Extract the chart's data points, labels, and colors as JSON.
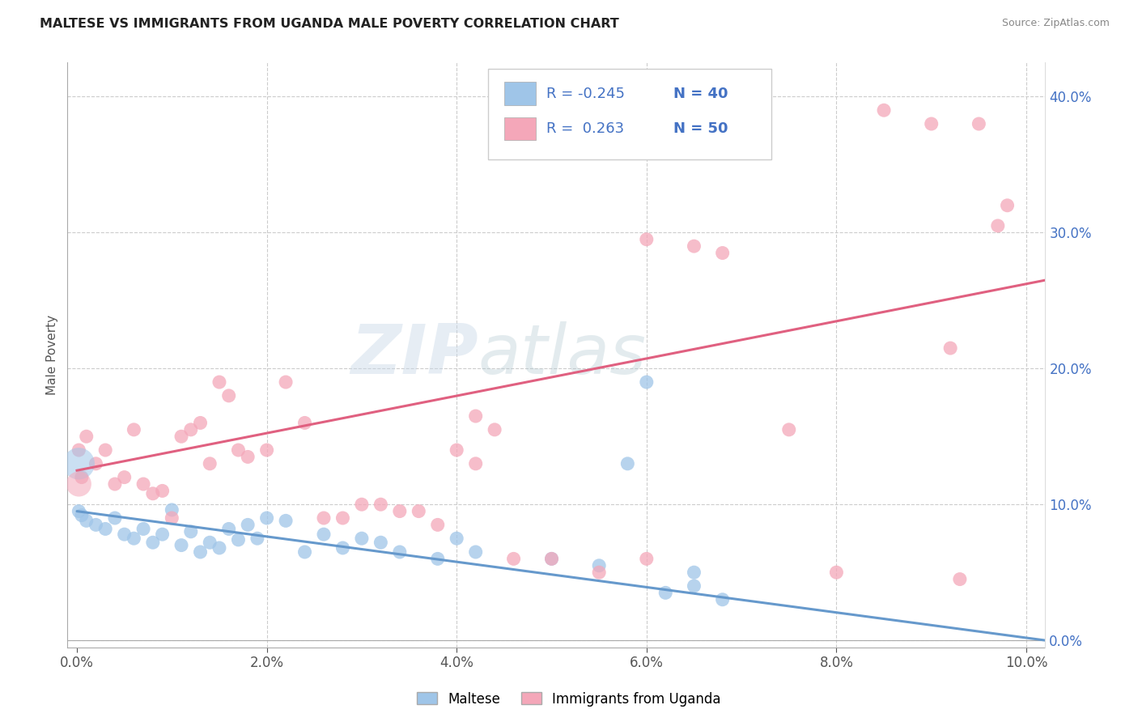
{
  "title": "MALTESE VS IMMIGRANTS FROM UGANDA MALE POVERTY CORRELATION CHART",
  "source": "Source: ZipAtlas.com",
  "ylabel": "Male Poverty",
  "xlim": [
    -0.001,
    0.102
  ],
  "ylim": [
    -0.005,
    0.425
  ],
  "xticks": [
    0.0,
    0.02,
    0.04,
    0.06,
    0.08,
    0.1
  ],
  "yticks": [
    0.0,
    0.1,
    0.2,
    0.3,
    0.4
  ],
  "ytick_labels_right": [
    "0.0%",
    "10.0%",
    "20.0%",
    "30.0%",
    "40.0%"
  ],
  "xtick_labels": [
    "0.0%",
    "2.0%",
    "4.0%",
    "6.0%",
    "8.0%",
    "10.0%"
  ],
  "legend_labels": [
    "Maltese",
    "Immigrants from Uganda"
  ],
  "blue_R": "-0.245",
  "blue_N": "40",
  "pink_R": "0.263",
  "pink_N": "50",
  "blue_color": "#9fc5e8",
  "pink_color": "#f4a7b9",
  "blue_line_color": "#6699cc",
  "pink_line_color": "#e06080",
  "watermark": "ZIPatlas",
  "blue_scatter_x": [
    0.0002,
    0.0005,
    0.001,
    0.002,
    0.003,
    0.004,
    0.005,
    0.006,
    0.007,
    0.008,
    0.009,
    0.01,
    0.011,
    0.012,
    0.013,
    0.014,
    0.015,
    0.016,
    0.017,
    0.018,
    0.019,
    0.02,
    0.022,
    0.024,
    0.026,
    0.028,
    0.03,
    0.032,
    0.034,
    0.038,
    0.04,
    0.042,
    0.05,
    0.055,
    0.058,
    0.062,
    0.065,
    0.068,
    0.06,
    0.065
  ],
  "blue_scatter_y": [
    0.095,
    0.092,
    0.088,
    0.085,
    0.082,
    0.09,
    0.078,
    0.075,
    0.082,
    0.072,
    0.078,
    0.096,
    0.07,
    0.08,
    0.065,
    0.072,
    0.068,
    0.082,
    0.074,
    0.085,
    0.075,
    0.09,
    0.088,
    0.065,
    0.078,
    0.068,
    0.075,
    0.072,
    0.065,
    0.06,
    0.075,
    0.065,
    0.06,
    0.055,
    0.13,
    0.035,
    0.04,
    0.03,
    0.19,
    0.05
  ],
  "blue_large_x": [
    0.0002
  ],
  "blue_large_y": [
    0.13
  ],
  "pink_scatter_x": [
    0.0002,
    0.0005,
    0.001,
    0.002,
    0.003,
    0.004,
    0.005,
    0.006,
    0.007,
    0.008,
    0.009,
    0.01,
    0.011,
    0.012,
    0.013,
    0.014,
    0.015,
    0.016,
    0.017,
    0.018,
    0.02,
    0.022,
    0.024,
    0.026,
    0.028,
    0.03,
    0.032,
    0.034,
    0.036,
    0.038,
    0.04,
    0.042,
    0.046,
    0.05,
    0.055,
    0.042,
    0.044,
    0.06,
    0.065,
    0.068,
    0.075,
    0.08,
    0.085,
    0.09,
    0.092,
    0.095,
    0.098,
    0.097,
    0.093,
    0.06
  ],
  "pink_scatter_y": [
    0.14,
    0.12,
    0.15,
    0.13,
    0.14,
    0.115,
    0.12,
    0.155,
    0.115,
    0.108,
    0.11,
    0.09,
    0.15,
    0.155,
    0.16,
    0.13,
    0.19,
    0.18,
    0.14,
    0.135,
    0.14,
    0.19,
    0.16,
    0.09,
    0.09,
    0.1,
    0.1,
    0.095,
    0.095,
    0.085,
    0.14,
    0.13,
    0.06,
    0.06,
    0.05,
    0.165,
    0.155,
    0.06,
    0.29,
    0.285,
    0.155,
    0.05,
    0.39,
    0.38,
    0.215,
    0.38,
    0.32,
    0.305,
    0.045,
    0.295
  ],
  "pink_large_x": [
    0.0002
  ],
  "pink_large_y": [
    0.13
  ],
  "blue_line_x0": 0.0,
  "blue_line_x1": 0.102,
  "blue_line_y0": 0.095,
  "blue_line_y1": 0.0,
  "pink_line_x0": 0.0,
  "pink_line_x1": 0.102,
  "pink_line_y0": 0.125,
  "pink_line_y1": 0.265
}
